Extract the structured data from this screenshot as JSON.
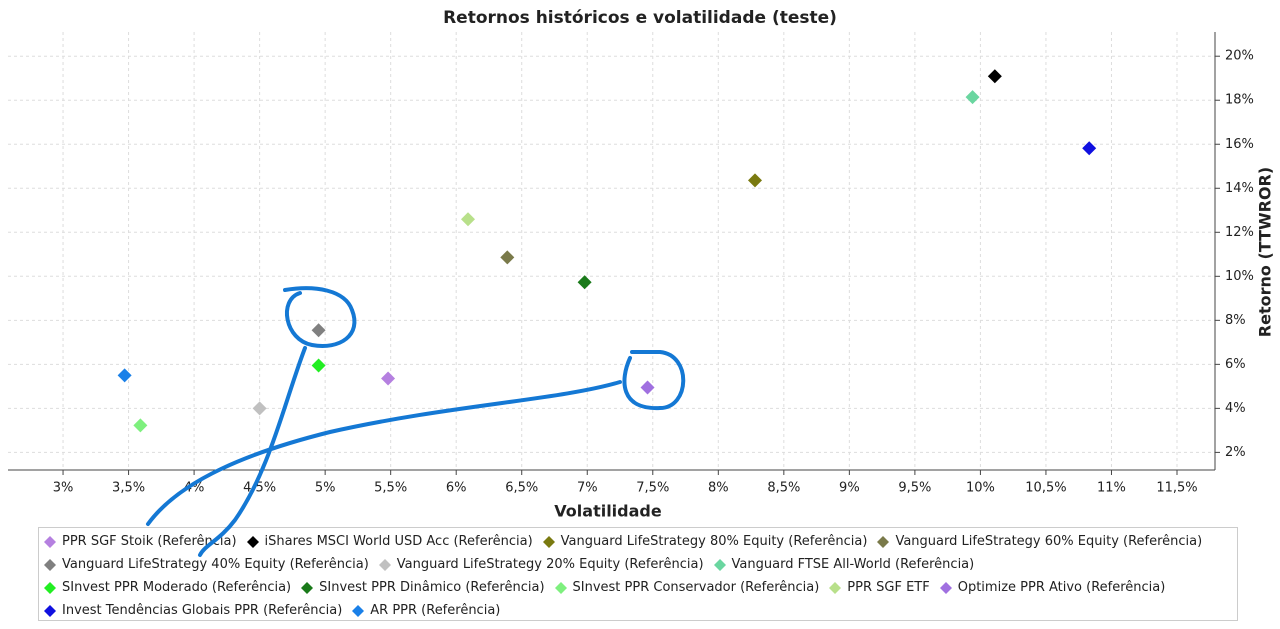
{
  "chart_data": {
    "type": "scatter",
    "title": "Retornos históricos e volatilidade (teste)",
    "x_label": "Volatilidade",
    "y_label": "Retorno (TTWROR)",
    "xlim": [
      2.58,
      11.79
    ],
    "ylim": [
      1.2,
      21.1
    ],
    "grid": true,
    "xticks": [
      {
        "value": 3,
        "label": "3%"
      },
      {
        "value": 3.5,
        "label": "3,5%"
      },
      {
        "value": 4,
        "label": "4%"
      },
      {
        "value": 4.5,
        "label": "4,5%"
      },
      {
        "value": 5,
        "label": "5%"
      },
      {
        "value": 5.5,
        "label": "5,5%"
      },
      {
        "value": 6,
        "label": "6%"
      },
      {
        "value": 6.5,
        "label": "6,5%"
      },
      {
        "value": 7,
        "label": "7%"
      },
      {
        "value": 7.5,
        "label": "7,5%"
      },
      {
        "value": 8,
        "label": "8%"
      },
      {
        "value": 8.5,
        "label": "8,5%"
      },
      {
        "value": 9,
        "label": "9%"
      },
      {
        "value": 9.5,
        "label": "9,5%"
      },
      {
        "value": 10,
        "label": "10%"
      },
      {
        "value": 10.5,
        "label": "10,5%"
      },
      {
        "value": 11,
        "label": "11%"
      },
      {
        "value": 11.5,
        "label": "11,5%"
      }
    ],
    "yticks": [
      {
        "value": 2,
        "label": "2%"
      },
      {
        "value": 4,
        "label": "4%"
      },
      {
        "value": 6,
        "label": "6%"
      },
      {
        "value": 8,
        "label": "8%"
      },
      {
        "value": 10,
        "label": "10%"
      },
      {
        "value": 12,
        "label": "12%"
      },
      {
        "value": 14,
        "label": "14%"
      },
      {
        "value": 16,
        "label": "16%"
      },
      {
        "value": 18,
        "label": "18%"
      },
      {
        "value": 20,
        "label": "20%"
      }
    ],
    "series": [
      {
        "name": "PPR SGF Stoik (Referência)",
        "color": "#b580e0",
        "x": [
          5.48
        ],
        "values": [
          5.36
        ]
      },
      {
        "name": "iShares MSCI World USD Acc (Referência)",
        "color": "#000000",
        "x": [
          10.11
        ],
        "values": [
          19.09
        ]
      },
      {
        "name": "Vanguard LifeStrategy 80% Equity (Referência)",
        "color": "#7a7a10",
        "x": [
          8.28
        ],
        "values": [
          14.36
        ]
      },
      {
        "name": "Vanguard LifeStrategy 60% Equity (Referência)",
        "color": "#7a7a4a",
        "x": [
          6.39
        ],
        "values": [
          10.86
        ]
      },
      {
        "name": "Vanguard LifeStrategy 40% Equity (Referência)",
        "color": "#808080",
        "x": [
          4.95
        ],
        "values": [
          7.55
        ]
      },
      {
        "name": "Vanguard LifeStrategy 20% Equity (Referência)",
        "color": "#c0c0c0",
        "x": [
          4.5
        ],
        "values": [
          4.0
        ]
      },
      {
        "name": "Vanguard FTSE All-World (Referência)",
        "color": "#6ad6a0",
        "x": [
          9.94
        ],
        "values": [
          18.14
        ]
      },
      {
        "name": "SInvest PPR Moderado (Referência)",
        "color": "#22ee22",
        "x": [
          4.95
        ],
        "values": [
          5.95
        ]
      },
      {
        "name": "SInvest PPR Dinâmico (Referência)",
        "color": "#1a7a1a",
        "x": [
          6.98
        ],
        "values": [
          9.73
        ]
      },
      {
        "name": "SInvest PPR Conservador (Referência)",
        "color": "#7ef07e",
        "x": [
          3.59
        ],
        "values": [
          3.23
        ]
      },
      {
        "name": "PPR SGF ETF",
        "color": "#b8e08a",
        "x": [
          6.09
        ],
        "values": [
          12.59
        ]
      },
      {
        "name": "Optimize PPR Ativo (Referência)",
        "color": "#a070e0",
        "x": [
          7.46
        ],
        "values": [
          4.95
        ]
      },
      {
        "name": "Invest Tendências Globais PPR (Referência)",
        "color": "#1010e0",
        "x": [
          10.83
        ],
        "values": [
          15.82
        ]
      },
      {
        "name": "AR PPR (Referência)",
        "color": "#1a80e8",
        "x": [
          3.47
        ],
        "values": [
          5.5
        ]
      }
    ]
  }
}
